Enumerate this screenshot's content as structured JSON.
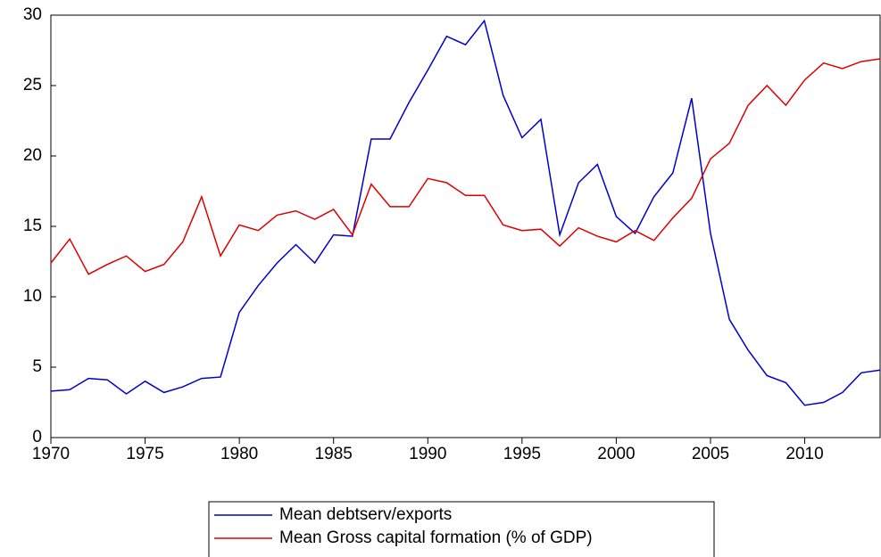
{
  "chart_data": {
    "type": "line",
    "x": [
      1970,
      1971,
      1972,
      1973,
      1974,
      1975,
      1976,
      1977,
      1978,
      1979,
      1980,
      1981,
      1982,
      1983,
      1984,
      1985,
      1986,
      1987,
      1988,
      1989,
      1990,
      1991,
      1992,
      1993,
      1994,
      1995,
      1996,
      1997,
      1998,
      1999,
      2000,
      2001,
      2002,
      2003,
      2004,
      2005,
      2006,
      2007,
      2008,
      2009,
      2010,
      2011,
      2012,
      2013,
      2014
    ],
    "series": [
      {
        "name": "Mean debtserv/exports",
        "color": "#0000cc",
        "values": [
          3.3,
          3.4,
          4.2,
          4.1,
          3.1,
          4.0,
          3.2,
          3.6,
          4.2,
          4.3,
          8.9,
          10.8,
          12.4,
          13.7,
          12.4,
          14.4,
          14.3,
          21.2,
          21.2,
          23.8,
          26.1,
          28.5,
          27.9,
          29.6,
          24.3,
          21.3,
          22.6,
          14.4,
          18.1,
          19.4,
          15.7,
          14.5,
          17.1,
          18.8,
          24.1,
          14.5,
          8.4,
          6.2,
          4.4,
          3.9,
          2.3,
          2.5,
          3.2,
          4.6,
          4.8
        ]
      },
      {
        "name": "Mean Gross capital formation (% of GDP)",
        "color": "#dd0000",
        "values": [
          12.4,
          14.1,
          11.6,
          12.3,
          12.9,
          11.8,
          12.3,
          13.9,
          17.1,
          12.9,
          15.1,
          14.7,
          15.8,
          16.1,
          15.5,
          16.2,
          14.4,
          18.0,
          16.4,
          16.4,
          18.4,
          18.1,
          17.2,
          17.2,
          15.1,
          14.7,
          14.8,
          13.6,
          14.9,
          14.3,
          13.9,
          14.7,
          14.0,
          15.6,
          17.0,
          19.8,
          20.9,
          23.6,
          25.0,
          23.6,
          25.4,
          26.6,
          26.2,
          26.7,
          26.9
        ]
      }
    ],
    "xlim": [
      1970,
      2014
    ],
    "xticks": [
      1970,
      1975,
      1980,
      1985,
      1990,
      1995,
      2000,
      2005,
      2010
    ],
    "ylim": [
      0,
      30
    ],
    "yticks": [
      0,
      5,
      10,
      15,
      20,
      25,
      30
    ],
    "grid": false,
    "legend": "bottom"
  }
}
